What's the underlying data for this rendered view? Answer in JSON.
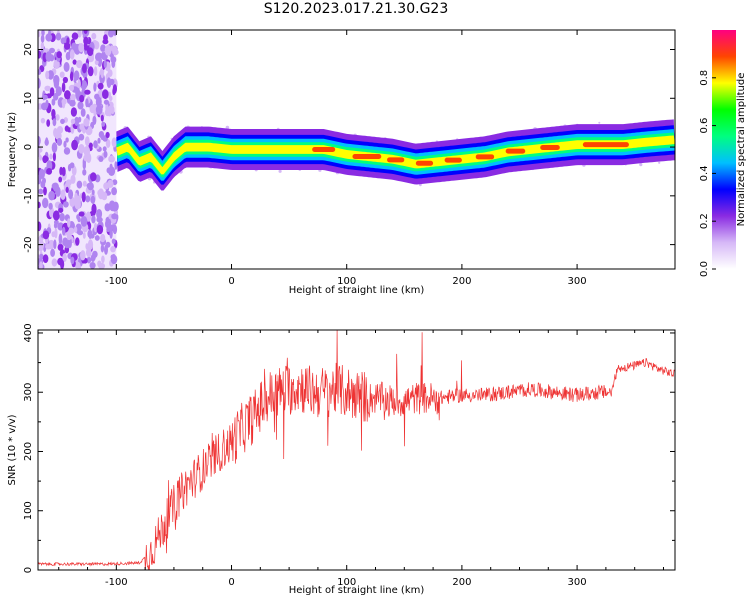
{
  "figure_title": "S120.2023.017.21.30.G23",
  "colors": {
    "snr_line": "#ee3333",
    "axis": "#000000",
    "colormap": [
      "#ffffff",
      "#d6b8f7",
      "#8a2be2",
      "#0000ff",
      "#00bfff",
      "#00ff7f",
      "#00ff00",
      "#ffff00",
      "#ff4500",
      "#ff0080"
    ]
  },
  "chart_data": [
    {
      "type": "heatmap",
      "title": "",
      "xlabel": "Height of straight line (km)",
      "ylabel": "Frequency (Hz)",
      "xlim": [
        -168,
        385
      ],
      "ylim": [
        -25,
        24
      ],
      "x_ticks": [
        -100,
        0,
        100,
        200,
        300
      ],
      "y_ticks": [
        -20,
        -10,
        0,
        10,
        20
      ],
      "colorbar": {
        "label": "Normalized spectral amplitude",
        "range": [
          0,
          1
        ],
        "ticks": [
          0.0,
          0.2,
          0.4,
          0.6,
          0.8
        ]
      },
      "noise_region_x": [
        -168,
        -100
      ],
      "ridge": {
        "x": [
          -100,
          -90,
          -80,
          -70,
          -60,
          -50,
          -40,
          -30,
          -20,
          0,
          20,
          50,
          80,
          100,
          120,
          140,
          160,
          180,
          200,
          220,
          240,
          260,
          280,
          300,
          320,
          340,
          360,
          385
        ],
        "freq": [
          -1,
          0,
          -3,
          -2,
          -5,
          -2,
          0,
          0,
          0,
          -0.5,
          -0.5,
          -0.5,
          -0.5,
          -1.5,
          -2,
          -2.5,
          -3.5,
          -3,
          -2.5,
          -2,
          -1,
          -0.5,
          0,
          0.5,
          0.5,
          0.5,
          1,
          1.5
        ]
      }
    },
    {
      "type": "line",
      "title": "",
      "xlabel": "Height of straight line (km)",
      "ylabel": "SNR (10 * v/v)",
      "xlim": [
        -168,
        385
      ],
      "ylim": [
        0,
        405
      ],
      "x_ticks": [
        -100,
        0,
        100,
        200,
        300
      ],
      "y_ticks": [
        0,
        100,
        200,
        300,
        400
      ],
      "series": [
        {
          "x": [
            -168,
            -140,
            -110,
            -80,
            -70,
            -60,
            -50,
            -40,
            -30,
            -20,
            -10,
            0,
            10,
            20,
            30,
            40,
            50,
            60,
            70,
            80,
            90,
            100,
            110,
            120,
            130,
            140,
            150,
            160,
            170,
            180,
            200,
            220,
            240,
            260,
            280,
            300,
            320,
            330,
            335,
            350,
            360,
            370,
            385
          ],
          "y": [
            10,
            10,
            10,
            12,
            30,
            70,
            110,
            140,
            160,
            180,
            200,
            215,
            240,
            260,
            290,
            300,
            305,
            310,
            300,
            300,
            305,
            300,
            295,
            290,
            290,
            285,
            285,
            290,
            290,
            290,
            295,
            295,
            300,
            305,
            300,
            295,
            300,
            300,
            340,
            345,
            350,
            340,
            330
          ]
        }
      ]
    }
  ]
}
